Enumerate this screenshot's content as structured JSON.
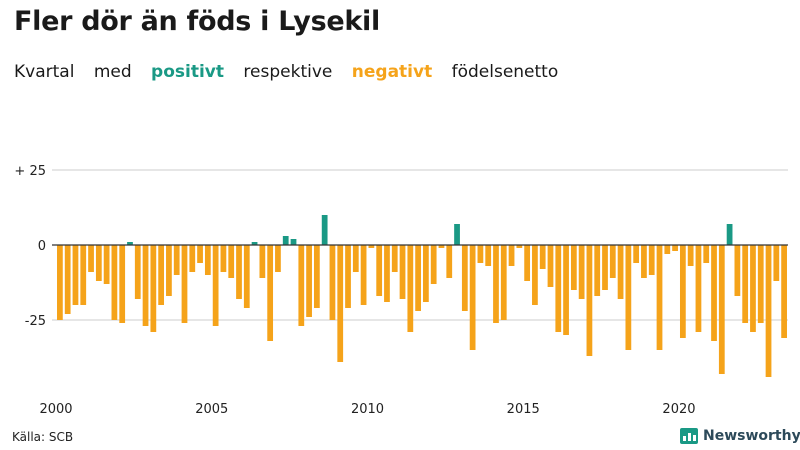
{
  "title": "Fler dör än föds i Lysekil",
  "subtitle": {
    "w1": "Kvartal",
    "w2": "med",
    "positive": "positivt",
    "w3": "respektive",
    "negative": "negativt",
    "w4": "födelsenetto"
  },
  "source": "Källa: SCB",
  "brand": "Newsworthy",
  "colors": {
    "positive": "#1a9985",
    "negative": "#f5a31a",
    "text": "#1a1a1a",
    "grid": "#cccccc",
    "zero": "#333333"
  },
  "chart_data": {
    "type": "bar",
    "ylim": [
      -45,
      25
    ],
    "yticks": [
      {
        "value": 25,
        "label": "+ 25"
      },
      {
        "value": 0,
        "label": "0"
      },
      {
        "value": -25,
        "label": "-25"
      }
    ],
    "xticks": [
      {
        "index": 0,
        "label": "2000"
      },
      {
        "index": 20,
        "label": "2005"
      },
      {
        "index": 40,
        "label": "2010"
      },
      {
        "index": 60,
        "label": "2015"
      },
      {
        "index": 80,
        "label": "2020"
      }
    ],
    "values": [
      -25,
      -23,
      -20,
      -20,
      -9,
      -12,
      -13,
      -25,
      -26,
      1,
      -18,
      -27,
      -29,
      -20,
      -17,
      -10,
      -26,
      -9,
      -6,
      -10,
      -27,
      -9,
      -11,
      -18,
      -21,
      1,
      -11,
      -32,
      -9,
      3,
      2,
      -27,
      -24,
      -21,
      10,
      -25,
      -39,
      -21,
      -9,
      -20,
      -1,
      -17,
      -19,
      -9,
      -18,
      -29,
      -22,
      -19,
      -13,
      -1,
      -11,
      7,
      -22,
      -35,
      -6,
      -7,
      -26,
      -25,
      -7,
      -1,
      -12,
      -20,
      -8,
      -14,
      -29,
      -30,
      -15,
      -18,
      -37,
      -17,
      -15,
      -11,
      -18,
      -35,
      -6,
      -11,
      -10,
      -35,
      -3,
      -2,
      -31,
      -7,
      -29,
      -6,
      -32,
      -43,
      7,
      -17,
      -26,
      -29,
      -26,
      -44,
      -12,
      -31
    ]
  }
}
